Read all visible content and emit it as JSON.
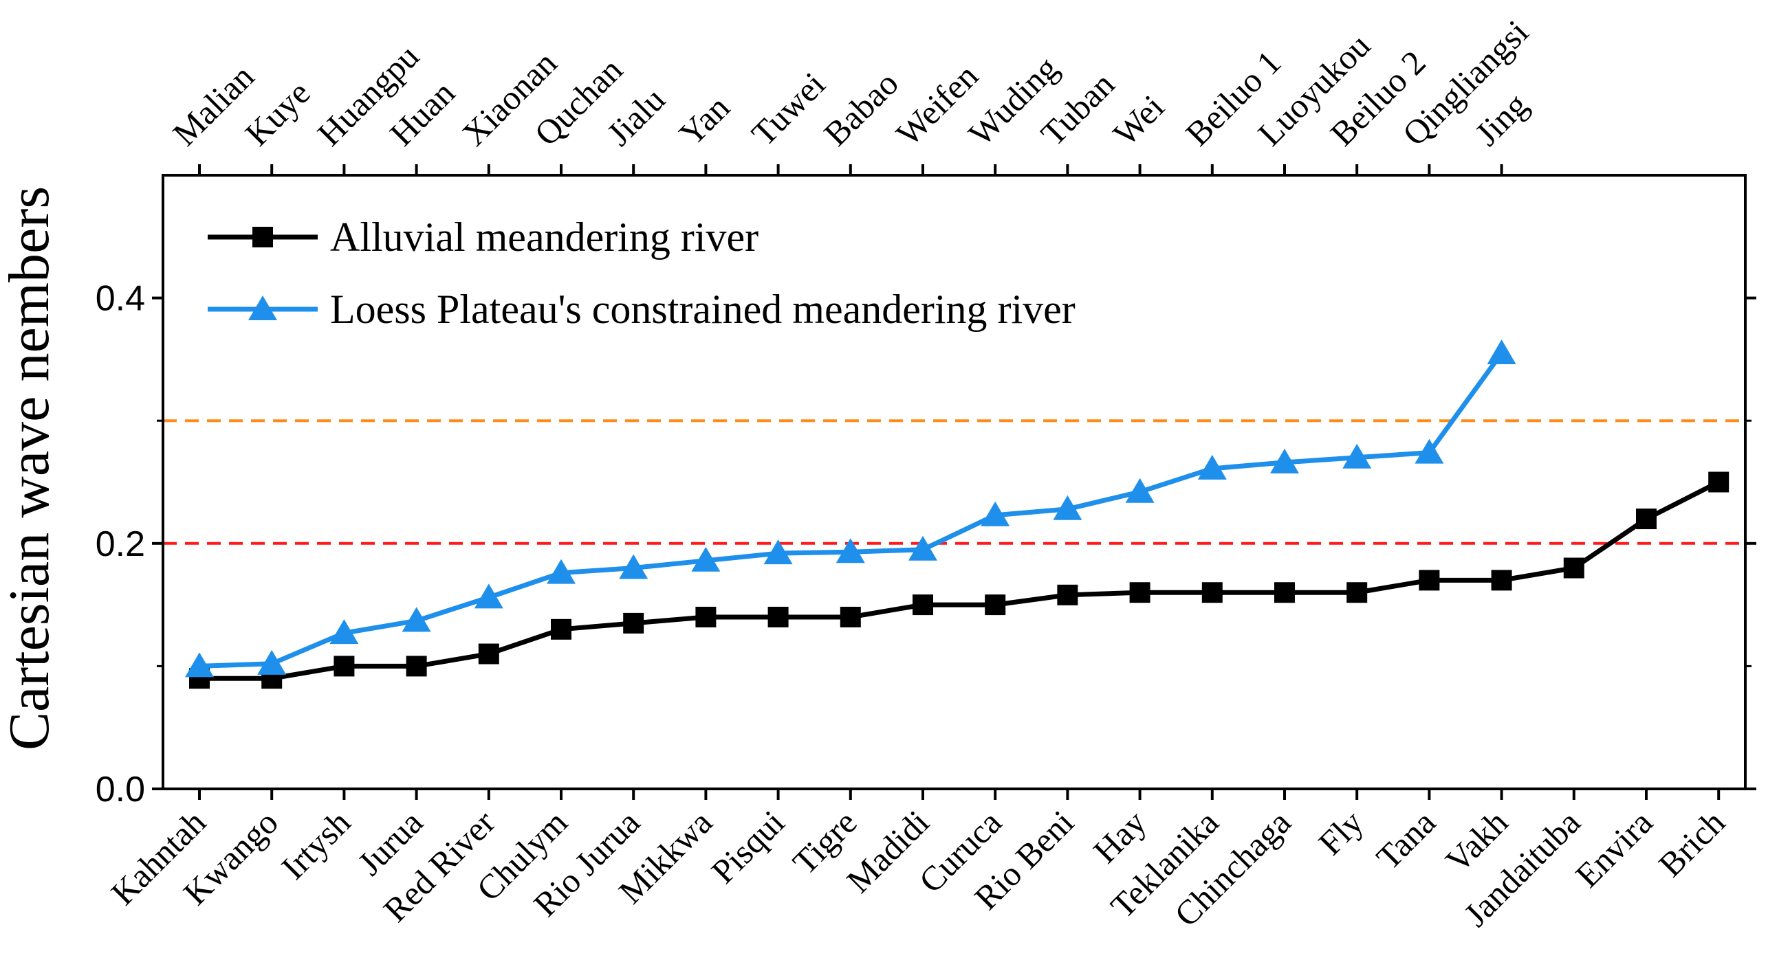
{
  "chart_data": {
    "type": "line",
    "ylabel": "Cartesian wave nembers",
    "ylim": [
      0.0,
      0.5
    ],
    "yticks": [
      0.0,
      0.2,
      0.4
    ],
    "ytick_labels": [
      "0.0",
      "0.2",
      "0.4"
    ],
    "bottom_categories": [
      "Kahntah",
      "Kwango",
      "Irtysh",
      "Jurua",
      "Red River",
      "Chulym",
      "Rio Jurua",
      "Mikkwa",
      "Pisqui",
      "Tigre",
      "Madidi",
      "Curuca",
      "Rio Beni",
      "Hay",
      "Teklanika",
      "Chinchaga",
      "Fly",
      "Tana",
      "Vakh",
      "Jandaituba",
      "Envira",
      "Brich"
    ],
    "top_categories": [
      "Malian",
      "Kuye",
      "Huangpu",
      "Huan",
      "Xiaonan",
      "Quchan",
      "Jialu",
      "Yan",
      "Tuwei",
      "Babao",
      "Weifen",
      "Wuding",
      "Tuban",
      "Wei",
      "Beiluo 1",
      "Luoyukou",
      "Beiluo 2",
      "Qingliangsi",
      "Jing"
    ],
    "series": [
      {
        "name": "Alluvial meandering river",
        "color": "#000000",
        "marker": "square",
        "values": [
          0.09,
          0.09,
          0.1,
          0.1,
          0.11,
          0.13,
          0.135,
          0.14,
          0.14,
          0.14,
          0.15,
          0.15,
          0.158,
          0.16,
          0.16,
          0.16,
          0.16,
          0.17,
          0.17,
          0.18,
          0.22,
          0.25
        ]
      },
      {
        "name": "Loess Plateau's constrained meandering river",
        "color": "#1e8fea",
        "marker": "triangle",
        "values": [
          0.1,
          0.102,
          0.127,
          0.137,
          0.156,
          0.176,
          0.18,
          0.186,
          0.192,
          0.193,
          0.195,
          0.223,
          0.228,
          0.242,
          0.261,
          0.266,
          0.27,
          0.274,
          0.355
        ]
      }
    ],
    "reference_lines": [
      {
        "y": 0.3,
        "color": "#ff8c1a",
        "style": "dashed"
      },
      {
        "y": 0.2,
        "color": "#ff1a1a",
        "style": "dashed"
      }
    ],
    "legend_position": "top-left"
  }
}
